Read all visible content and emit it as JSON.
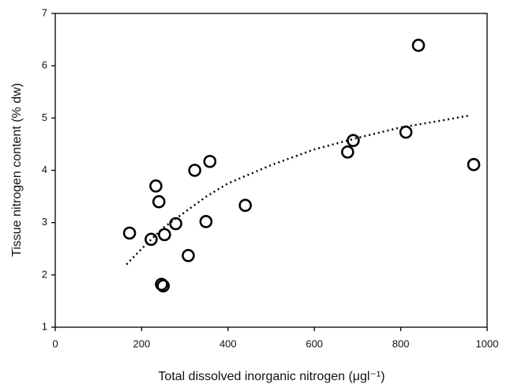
{
  "chart_data": {
    "type": "scatter",
    "xlabel": "Total dissolved inorganic nitrogen (μgl⁻¹)",
    "ylabel": "Tissue nitrogen content (% dw)",
    "series": [
      {
        "x": [
          172,
          222,
          233,
          240,
          253,
          246,
          250,
          279,
          308,
          323,
          349,
          358,
          440,
          677,
          690,
          812,
          841,
          969
        ],
        "values": [
          2.8,
          2.68,
          3.7,
          3.4,
          2.77,
          1.82,
          1.79,
          2.98,
          2.37,
          4.0,
          3.02,
          4.17,
          3.33,
          4.35,
          4.57,
          4.73,
          6.39,
          4.11
        ],
        "color": "#000000"
      }
    ],
    "trend": {
      "x": [
        165,
        200,
        250,
        300,
        350,
        400,
        500,
        600,
        700,
        800,
        900,
        960
      ],
      "values": [
        2.2,
        2.5,
        2.9,
        3.2,
        3.5,
        3.75,
        4.1,
        4.4,
        4.62,
        4.82,
        4.96,
        5.05
      ],
      "color": "#000000"
    },
    "xlim": [
      0,
      1000
    ],
    "xticks": [
      0,
      200,
      400,
      600,
      800,
      1000
    ],
    "ylim": [
      1,
      7
    ],
    "yticks": [
      1,
      2,
      3,
      4,
      5,
      6,
      7
    ],
    "grid": false
  }
}
